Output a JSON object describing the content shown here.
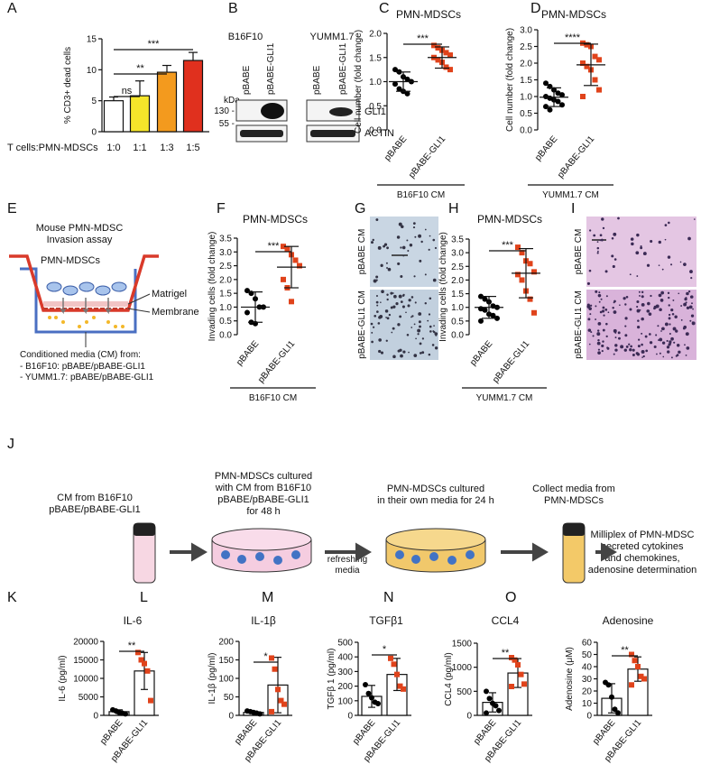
{
  "chart_data": [
    {
      "panel": "A",
      "type": "bar",
      "ylabel": "% CD3+ dead cells",
      "xlabel": "T cells:PMN-MDSCs",
      "categories": [
        "1:0",
        "1:1",
        "1:3",
        "1:5"
      ],
      "values": [
        5.0,
        5.8,
        9.6,
        11.5
      ],
      "errors": [
        0.6,
        2.4,
        1.1,
        1.3
      ],
      "colors": [
        "#ffffff",
        "#f5e52a",
        "#f39a1e",
        "#e0301e"
      ],
      "ylim": [
        0,
        15
      ],
      "yticks": [
        0,
        5,
        10,
        15
      ],
      "significance": [
        "ns",
        "**",
        "***"
      ]
    },
    {
      "panel": "C",
      "type": "dotplot",
      "title": "PMN-MDSCs",
      "ylabel": "Cell number (fold change)",
      "categories": [
        "pBABE",
        "pBABE-GLI1"
      ],
      "condition": "B16F10 CM",
      "groups": [
        {
          "color": "#000000",
          "marker": "circle",
          "values": [
            1.25,
            1.2,
            1.1,
            1.05,
            1.0,
            0.95,
            0.85,
            0.8,
            0.75
          ],
          "mean": 1.0,
          "sd": 0.2
        },
        {
          "color": "#e0431b",
          "marker": "square",
          "values": [
            1.75,
            1.7,
            1.65,
            1.6,
            1.55,
            1.5,
            1.45,
            1.4,
            1.3,
            1.25
          ],
          "mean": 1.5,
          "sd": 0.22
        }
      ],
      "ylim": [
        0,
        2
      ],
      "yticks": [
        {
          "value": 0,
          "label": "0.0"
        },
        0.5,
        {
          "value": 1,
          "label": "1.0"
        },
        1.5,
        {
          "value": 2,
          "label": "2.0"
        }
      ],
      "significance": "***"
    },
    {
      "panel": "D",
      "type": "dotplot",
      "title": "PMN-MDSCs",
      "ylabel": "Cell number (fold change)",
      "categories": [
        "pBABE",
        "pBABE-GLI1"
      ],
      "condition": "YUMM1.7 CM",
      "groups": [
        {
          "color": "#000000",
          "marker": "circle",
          "values": [
            1.4,
            1.3,
            1.2,
            1.1,
            1.05,
            1.0,
            0.95,
            0.9,
            0.85,
            0.75,
            0.7,
            0.6
          ],
          "mean": 0.98,
          "sd": 0.28
        },
        {
          "color": "#e0431b",
          "marker": "square",
          "values": [
            2.6,
            2.55,
            2.5,
            2.2,
            2.1,
            2.0,
            1.9,
            1.8,
            1.5,
            1.2,
            1.0
          ],
          "mean": 1.95,
          "sd": 0.62
        }
      ],
      "ylim": [
        0,
        3
      ],
      "yticks": [
        {
          "value": 0,
          "label": "0.0"
        },
        0.5,
        {
          "value": 1,
          "label": "1.0"
        },
        1.5,
        {
          "value": 2,
          "label": "2.0"
        },
        2.5,
        {
          "value": 3,
          "label": "3.0"
        }
      ],
      "significance": "****"
    },
    {
      "panel": "F",
      "type": "dotplot",
      "title": "PMN-MDSCs",
      "ylabel": "Invading cells (fold change)",
      "categories": [
        "pBABE",
        "pBABE-GLI1"
      ],
      "condition": "B16F10 CM",
      "groups": [
        {
          "color": "#000000",
          "marker": "circle",
          "values": [
            1.6,
            1.5,
            1.3,
            1.0,
            1.0,
            0.8,
            0.45,
            0.4
          ],
          "mean": 1.0,
          "sd": 0.55
        },
        {
          "color": "#e0431b",
          "marker": "square",
          "values": [
            3.2,
            3.1,
            2.9,
            2.7,
            2.5,
            2.0,
            1.7,
            1.2
          ],
          "mean": 2.45,
          "sd": 0.75
        }
      ],
      "ylim": [
        0,
        3.5
      ],
      "yticks": [
        {
          "value": 0,
          "label": "0.0"
        },
        0.5,
        {
          "value": 1,
          "label": "1.0"
        },
        1.5,
        {
          "value": 2,
          "label": "2.0"
        },
        2.5,
        {
          "value": 3,
          "label": "3.0"
        },
        3.5
      ],
      "significance": "***"
    },
    {
      "panel": "H",
      "type": "dotplot",
      "title": "PMN-MDSCs",
      "ylabel": "Invading cells (fold change)",
      "categories": [
        "pBABE",
        "pBABE-GLI1"
      ],
      "condition": "YUMM1.7 CM",
      "groups": [
        {
          "color": "#000000",
          "marker": "circle",
          "values": [
            1.4,
            1.3,
            1.2,
            1.05,
            1.0,
            0.95,
            0.9,
            0.75,
            0.7,
            0.6,
            0.5
          ],
          "mean": 1.0,
          "sd": 0.4
        },
        {
          "color": "#e0431b",
          "marker": "square",
          "values": [
            3.2,
            3.0,
            2.7,
            2.6,
            2.3,
            2.2,
            2.0,
            1.6,
            1.3,
            0.8
          ],
          "mean": 2.25,
          "sd": 0.9
        }
      ],
      "ylim": [
        0,
        3.5
      ],
      "yticks": [
        {
          "value": 0,
          "label": "0.0"
        },
        0.5,
        {
          "value": 1,
          "label": "1.0"
        },
        1.5,
        {
          "value": 2,
          "label": "2.0"
        },
        2.5,
        {
          "value": 3,
          "label": "3.0"
        },
        3.5
      ],
      "significance": "***"
    },
    {
      "panel": "K",
      "type": "bar_dots",
      "title": "IL-6",
      "ylabel": "IL-6 (pg/ml)",
      "categories": [
        "pBABE",
        "pBABE-GLI1"
      ],
      "values": [
        1000,
        12000
      ],
      "errors": [
        500,
        5000
      ],
      "points": [
        [
          1500,
          1200,
          800,
          600,
          400
        ],
        [
          17000,
          15000,
          14000,
          12000,
          4000
        ]
      ],
      "point_colors": [
        "#000000",
        "#e0431b"
      ],
      "markers": [
        "circle",
        "square"
      ],
      "ylim": [
        0,
        20000
      ],
      "yticks": [
        0,
        5000,
        10000,
        15000,
        20000
      ],
      "significance": "**"
    },
    {
      "panel": "L",
      "type": "bar_dots",
      "title": "IL-1β",
      "ylabel": "IL-1β (pg/ml)",
      "categories": [
        "pBABE",
        "pBABE-GLI1"
      ],
      "values": [
        8,
        82
      ],
      "errors": [
        3,
        75
      ],
      "points": [
        [
          12,
          10,
          8,
          6,
          4
        ],
        [
          155,
          125,
          70,
          40,
          30,
          10
        ]
      ],
      "point_colors": [
        "#000000",
        "#e0431b"
      ],
      "markers": [
        "circle",
        "square"
      ],
      "ylim": [
        0,
        200
      ],
      "yticks": [
        0,
        50,
        100,
        150,
        200
      ],
      "significance": "*"
    },
    {
      "panel": "M",
      "type": "bar_dots",
      "title": "TGFβ1",
      "ylabel": "TGFβ 1 (pg/ml)",
      "categories": [
        "pBABE",
        "pBABE-GLI1"
      ],
      "values": [
        130,
        280
      ],
      "errors": [
        75,
        110
      ],
      "points": [
        [
          210,
          150,
          120,
          90,
          80
        ],
        [
          390,
          350,
          280,
          200,
          180
        ]
      ],
      "point_colors": [
        "#000000",
        "#e0431b"
      ],
      "markers": [
        "circle",
        "square"
      ],
      "ylim": [
        0,
        500
      ],
      "yticks": [
        0,
        100,
        200,
        300,
        400,
        500
      ],
      "significance": "*"
    },
    {
      "panel": "N",
      "type": "bar_dots",
      "title": "CCL4",
      "ylabel": "CCL4 (pg/ml)",
      "categories": [
        "pBABE",
        "pBABE-GLI1"
      ],
      "values": [
        270,
        880
      ],
      "errors": [
        200,
        300
      ],
      "points": [
        [
          500,
          350,
          250,
          200,
          100,
          50
        ],
        [
          1200,
          1150,
          1050,
          850,
          650,
          600
        ]
      ],
      "point_colors": [
        "#000000",
        "#e0431b"
      ],
      "markers": [
        "circle",
        "square"
      ],
      "ylim": [
        0,
        1500
      ],
      "yticks": [
        0,
        500,
        1000,
        1500
      ],
      "significance": "**"
    },
    {
      "panel": "O",
      "type": "bar_dots",
      "title": "Adenosine",
      "ylabel": "Adenosine (μM)",
      "categories": [
        "pBABE",
        "pBABE-GLI1"
      ],
      "values": [
        14,
        38
      ],
      "errors": [
        12,
        10
      ],
      "points": [
        [
          27,
          25,
          15,
          5,
          2
        ],
        [
          50,
          45,
          40,
          32,
          30,
          25
        ]
      ],
      "point_colors": [
        "#000000",
        "#e0431b"
      ],
      "markers": [
        "circle",
        "square"
      ],
      "ylim": [
        0,
        60
      ],
      "yticks": [
        0,
        10,
        20,
        30,
        40,
        50,
        60
      ],
      "significance": "**"
    }
  ],
  "blot": {
    "panel": "B",
    "cell_lines": [
      "B16F10",
      "YUMM1.7"
    ],
    "lanes": [
      "pBABE",
      "pBABE-GLI1"
    ],
    "size_unit": "kDa",
    "size_markers": [
      "130 -",
      "55 -"
    ],
    "proteins": [
      "GLI1",
      "ACTIN"
    ]
  },
  "invasion_diagram": {
    "panel": "E",
    "title": [
      "Mouse PMN-MDSC",
      "Invasion assay"
    ],
    "cells": "PMN-MDSCs",
    "layers": [
      "Matrigel",
      "Membrane"
    ],
    "media": [
      "Conditioned media (CM) from:",
      "- B16F10: pBABE/pBABE-GLI1",
      "- YUMM1.7: pBABE/pBABE-GLI1"
    ]
  },
  "micrographs": [
    {
      "panel": "G",
      "labels": [
        "pBABE CM",
        "pBABE-GLI1 CM"
      ]
    },
    {
      "panel": "I",
      "labels": [
        "pBABE CM",
        "pBABE-GLI1 CM"
      ]
    }
  ],
  "workflow": {
    "panel": "J",
    "steps": [
      [
        "CM from B16F10",
        "pBABE/pBABE-GLI1"
      ],
      [
        "PMN-MDSCs cultured",
        "with CM from B16F10",
        "pBABE/pBABE-GLI1",
        "for 48 h"
      ],
      [
        "PMN-MDSCs cultured",
        "in their own media for 24 h"
      ],
      [
        "Collect media from",
        "PMN-MDSCs"
      ],
      [
        "Milliplex of PMN-MDSC",
        "secreted cytokines",
        "and chemokines,",
        "adenosine determination"
      ]
    ],
    "arrow_note": [
      "refreshing",
      "media"
    ]
  }
}
